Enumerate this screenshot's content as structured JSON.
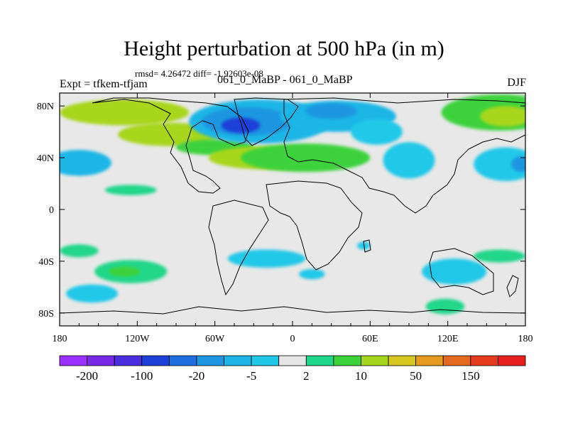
{
  "header": {
    "title": "Height perturbation at 500 hPa (in m)",
    "rmsd_line": "rmsd= 4.26472 diff= -1.92603e-08",
    "experiment": "Expt = tfkem-tfjam",
    "subtitle": "061_0_MaBP - 061_0_MaBP",
    "season": "DJF"
  },
  "chart_data": {
    "type": "heatmap",
    "title": "Height perturbation at 500 hPa (in m)",
    "xlabel": "",
    "ylabel": "",
    "xlim": [
      -180,
      180
    ],
    "ylim": [
      -90,
      90
    ],
    "x_ticks": [
      {
        "value": -180,
        "label": "180"
      },
      {
        "value": -120,
        "label": "120W"
      },
      {
        "value": -60,
        "label": "60W"
      },
      {
        "value": 0,
        "label": "0"
      },
      {
        "value": 60,
        "label": "60E"
      },
      {
        "value": 120,
        "label": "120E"
      },
      {
        "value": 180,
        "label": "180"
      }
    ],
    "y_ticks": [
      {
        "value": 80,
        "label": "80N"
      },
      {
        "value": 40,
        "label": "40N"
      },
      {
        "value": 0,
        "label": "0"
      },
      {
        "value": -40,
        "label": "40S"
      },
      {
        "value": -80,
        "label": "80S"
      }
    ],
    "background_color": "#e8e8e8",
    "colorbar": {
      "colors": [
        "#9b30ff",
        "#7a28e8",
        "#4b2ee0",
        "#1e40d8",
        "#1f6ee0",
        "#1e96e0",
        "#1cb6e6",
        "#20c8e8",
        "#e6e6e6",
        "#20d68a",
        "#3cd23c",
        "#a8d61e",
        "#d6c81e",
        "#e69a1e",
        "#e66a1e",
        "#e63c1e",
        "#e61e1e"
      ],
      "labels": [
        "-200",
        "-100",
        "-20",
        "-5",
        "2",
        "10",
        "50",
        "150"
      ],
      "label_boundary_index": [
        1,
        3,
        5,
        7,
        9,
        11,
        13,
        15
      ]
    },
    "anomalies": [
      {
        "lon": -130,
        "lat": 75,
        "rx": 50,
        "ry": 10,
        "level": 11
      },
      {
        "lon": -95,
        "lat": 58,
        "rx": 40,
        "ry": 9,
        "level": 11
      },
      {
        "lon": -60,
        "lat": 48,
        "rx": 30,
        "ry": 6,
        "level": 10
      },
      {
        "lon": -20,
        "lat": 40,
        "rx": 45,
        "ry": 9,
        "level": 11
      },
      {
        "lon": 10,
        "lat": 40,
        "rx": 50,
        "ry": 11,
        "level": 10
      },
      {
        "lon": -25,
        "lat": 68,
        "rx": 55,
        "ry": 17,
        "level": 6
      },
      {
        "lon": -35,
        "lat": 68,
        "rx": 35,
        "ry": 11,
        "level": 5
      },
      {
        "lon": -40,
        "lat": 65,
        "rx": 15,
        "ry": 6,
        "level": 3
      },
      {
        "lon": 35,
        "lat": 72,
        "rx": 45,
        "ry": 12,
        "level": 6
      },
      {
        "lon": 30,
        "lat": 76,
        "rx": 20,
        "ry": 6,
        "level": 5
      },
      {
        "lon": 65,
        "lat": 60,
        "rx": 20,
        "ry": 10,
        "level": 7
      },
      {
        "lon": 90,
        "lat": 38,
        "rx": 20,
        "ry": 14,
        "level": 7
      },
      {
        "lon": 160,
        "lat": 75,
        "rx": 45,
        "ry": 14,
        "level": 10
      },
      {
        "lon": 165,
        "lat": 72,
        "rx": 20,
        "ry": 8,
        "level": 11
      },
      {
        "lon": 165,
        "lat": 35,
        "rx": 25,
        "ry": 13,
        "level": 7
      },
      {
        "lon": 177,
        "lat": 35,
        "rx": 8,
        "ry": 6,
        "level": 5
      },
      {
        "lon": -165,
        "lat": 36,
        "rx": 25,
        "ry": 10,
        "level": 6
      },
      {
        "lon": -125,
        "lat": 15,
        "rx": 20,
        "ry": 4,
        "level": 9
      },
      {
        "lon": -165,
        "lat": -32,
        "rx": 15,
        "ry": 5,
        "level": 9
      },
      {
        "lon": -125,
        "lat": -48,
        "rx": 28,
        "ry": 9,
        "level": 9
      },
      {
        "lon": -130,
        "lat": -48,
        "rx": 12,
        "ry": 4,
        "level": 10
      },
      {
        "lon": -155,
        "lat": -65,
        "rx": 20,
        "ry": 7,
        "level": 7
      },
      {
        "lon": -20,
        "lat": -38,
        "rx": 30,
        "ry": 7,
        "level": 7
      },
      {
        "lon": 15,
        "lat": -50,
        "rx": 10,
        "ry": 4,
        "level": 7
      },
      {
        "lon": 125,
        "lat": -48,
        "rx": 25,
        "ry": 10,
        "level": 7
      },
      {
        "lon": 118,
        "lat": -75,
        "rx": 15,
        "ry": 6,
        "level": 9
      },
      {
        "lon": 160,
        "lat": -36,
        "rx": 20,
        "ry": 5,
        "level": 9
      },
      {
        "lon": 55,
        "lat": -28,
        "rx": 5,
        "ry": 3,
        "level": 7
      }
    ]
  }
}
